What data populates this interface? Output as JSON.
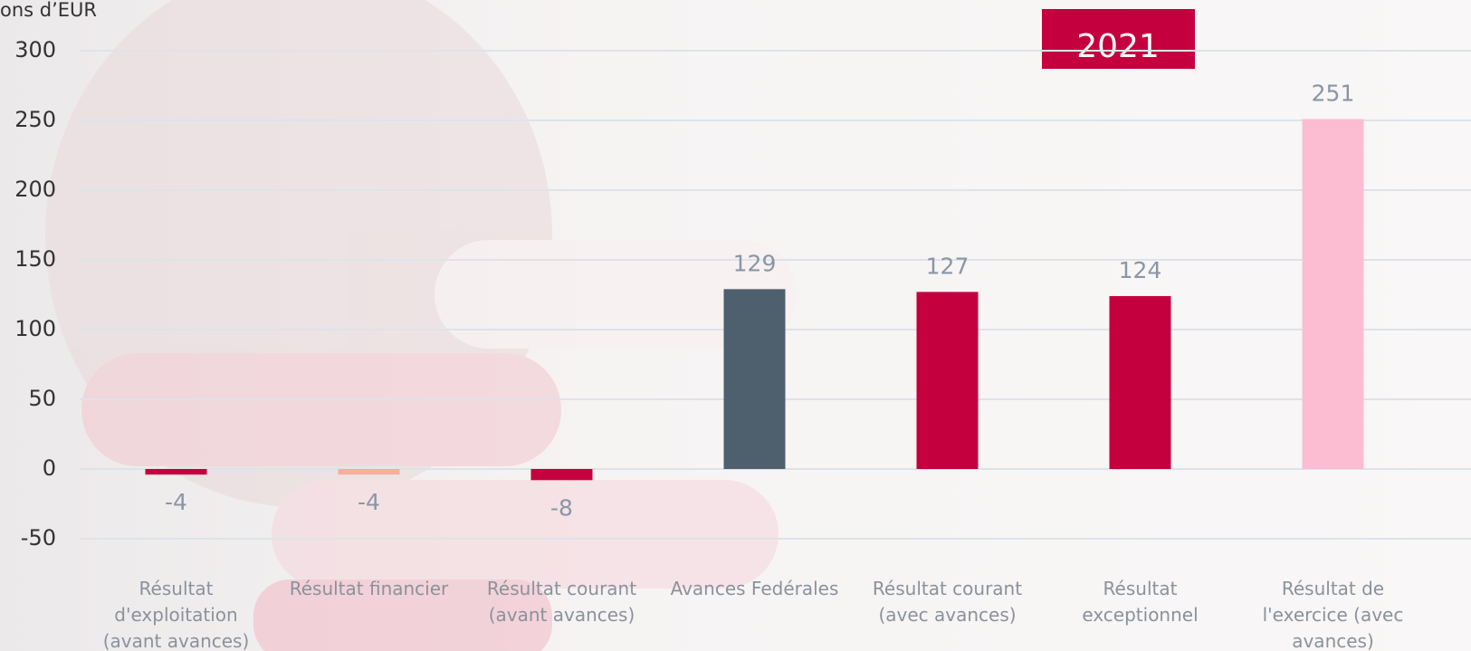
{
  "chart_data": {
    "type": "bar",
    "axis_label": "ons d’EUR",
    "annotation": "2021",
    "categories": [
      "Résultat d'exploitation (avant avances)",
      "Résultat financier",
      "Résultat courant (avant avances)",
      "Avances Fedérales",
      "Résultat courant (avec avances)",
      "Résultat exceptionnel",
      "Résultat de l'exercice (avec avances)"
    ],
    "values": [
      -4,
      -4,
      -8,
      129,
      127,
      124,
      251
    ],
    "colors": [
      "#c4003f",
      "#f7ae9c",
      "#c4003f",
      "#4e606e",
      "#c4003f",
      "#c4003f",
      "#fcbdd2"
    ],
    "ylim": [
      -50,
      300
    ],
    "yticks": [
      -50,
      0,
      50,
      100,
      150,
      200,
      250,
      300
    ],
    "grid": true
  }
}
